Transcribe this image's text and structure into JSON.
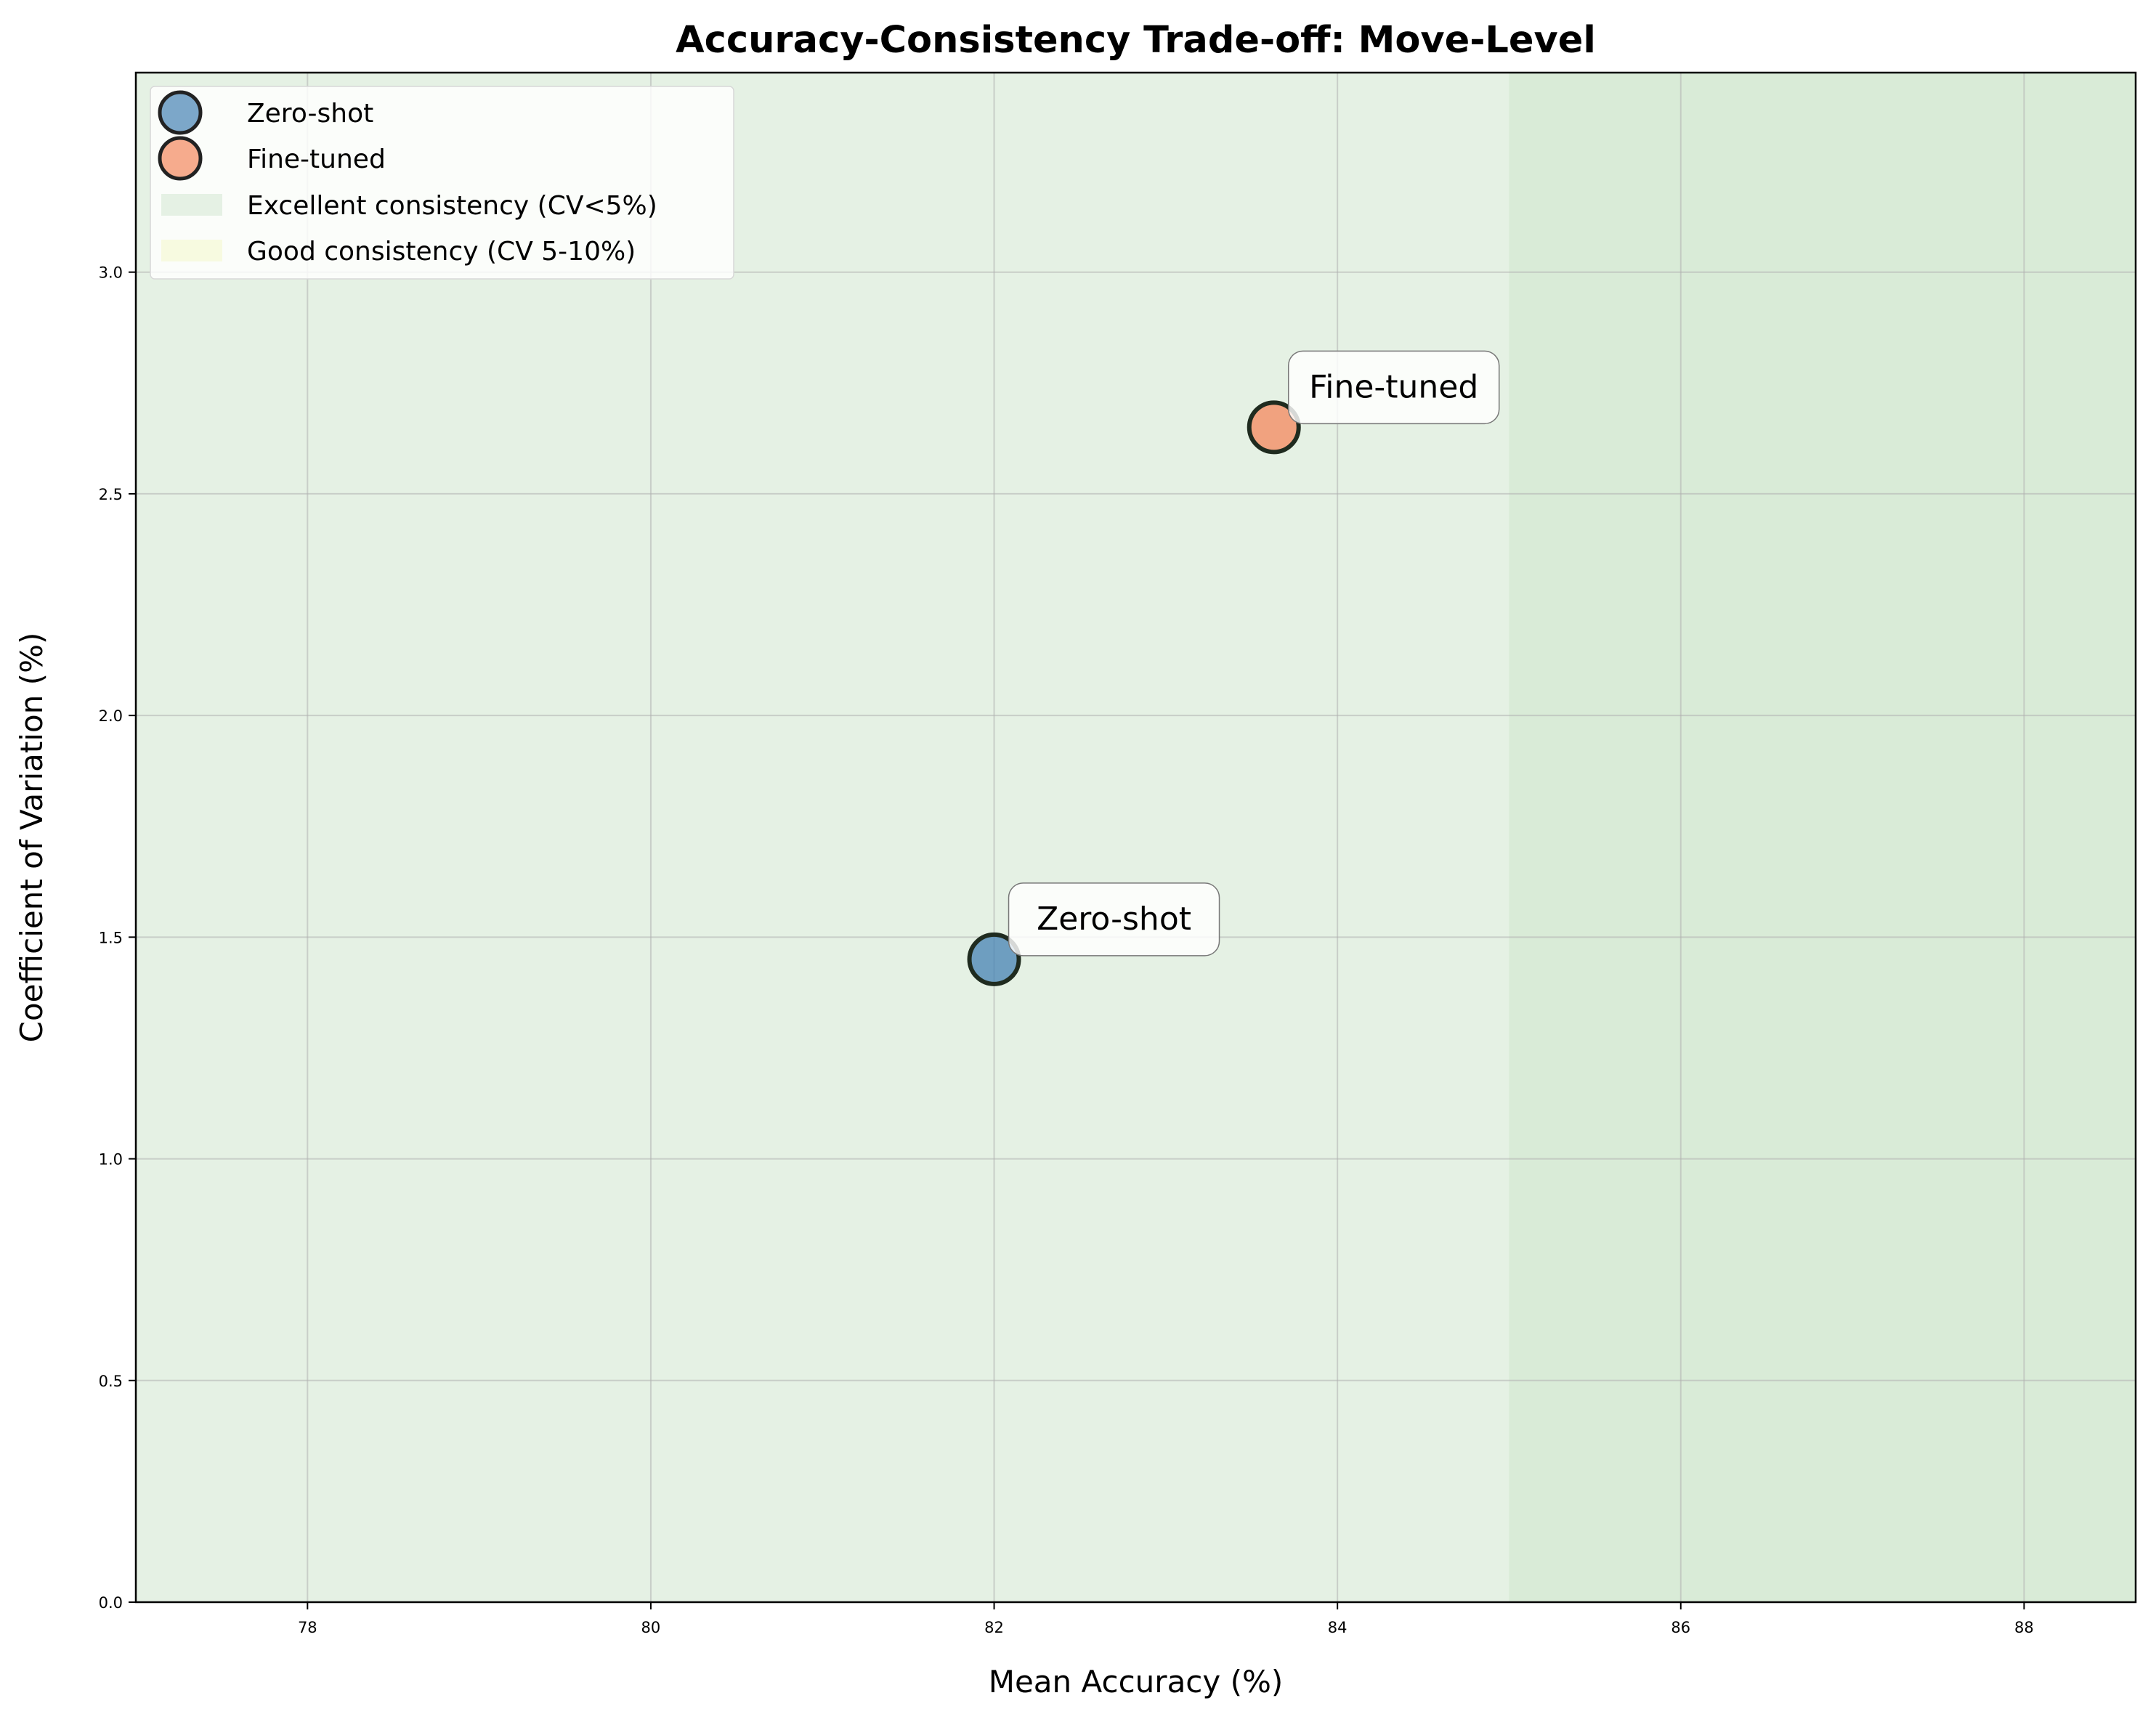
{
  "chart_data": {
    "type": "scatter",
    "title": "Accuracy-Consistency Trade-off: Move-Level",
    "xlabel": "Mean Accuracy (%)",
    "ylabel": "Coefficient of Variation (%)",
    "xlim": [
      77.0,
      88.65
    ],
    "ylim": [
      0.0,
      3.45
    ],
    "xticks": [
      78,
      80,
      82,
      84,
      86,
      88
    ],
    "xtick_labels": [
      "78",
      "80",
      "82",
      "84",
      "86",
      "88"
    ],
    "yticks": [
      0.0,
      0.5,
      1.0,
      1.5,
      2.0,
      2.5,
      3.0
    ],
    "ytick_labels": [
      "0.0",
      "0.5",
      "1.0",
      "1.5",
      "2.0",
      "2.5",
      "3.0"
    ],
    "grid": true,
    "legend_position": "upper-left",
    "series": [
      {
        "name": "Zero-shot",
        "x": [
          82.0
        ],
        "y": [
          1.45
        ],
        "color": "#4682b4",
        "annotation": "Zero-shot"
      },
      {
        "name": "Fine-tuned",
        "x": [
          83.63
        ],
        "y": [
          2.65
        ],
        "color": "#f4875e",
        "annotation": "Fine-tuned"
      }
    ],
    "regions": [
      {
        "name": "Excellent consistency (CV<5%)",
        "y_range": [
          0,
          5
        ],
        "color": "#e5f1e4"
      },
      {
        "name": "Good consistency (CV 5-10%)",
        "y_range": [
          5,
          10
        ],
        "color": "#f7fae0"
      },
      {
        "x_range": [
          85,
          88.65
        ],
        "color": "#d9ebd7"
      }
    ]
  }
}
